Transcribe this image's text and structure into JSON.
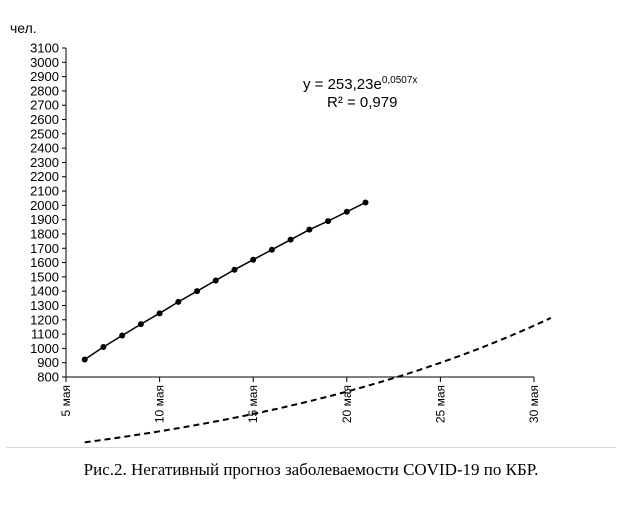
{
  "chart_data": {
    "type": "scatter",
    "ylabel": "чел.",
    "x_axis": {
      "ticks": [
        "5 мая",
        "10 мая",
        "15 мая",
        "20 мая",
        "25 мая",
        "30 мая"
      ],
      "range_days": [
        5,
        30
      ]
    },
    "y_axis": {
      "ylim": [
        800,
        3100
      ],
      "step": 100
    },
    "grid": false,
    "series": [
      {
        "kind": "actual",
        "style": "solid line with markers",
        "x_days": [
          6,
          7,
          8,
          9,
          10,
          11,
          12,
          13,
          14,
          15,
          16,
          17,
          18,
          19,
          20,
          21
        ],
        "values": [
          922,
          1010,
          1090,
          1170,
          1245,
          1325,
          1400,
          1475,
          1550,
          1620,
          1690,
          1760,
          1830,
          1890,
          1955,
          2020
        ]
      },
      {
        "kind": "trendline",
        "style": "dashed",
        "model": "exponential",
        "a": 253.23,
        "b": 0.0507,
        "x_day_offset": 0
      }
    ],
    "annotation": {
      "equation_prefix": "y = 253,23e",
      "equation_exponent": "0,0507x",
      "r2_text": "R² = 0,979"
    }
  },
  "caption": "Рис.2. Негативный прогноз заболеваемости COVID-19 по КБР."
}
